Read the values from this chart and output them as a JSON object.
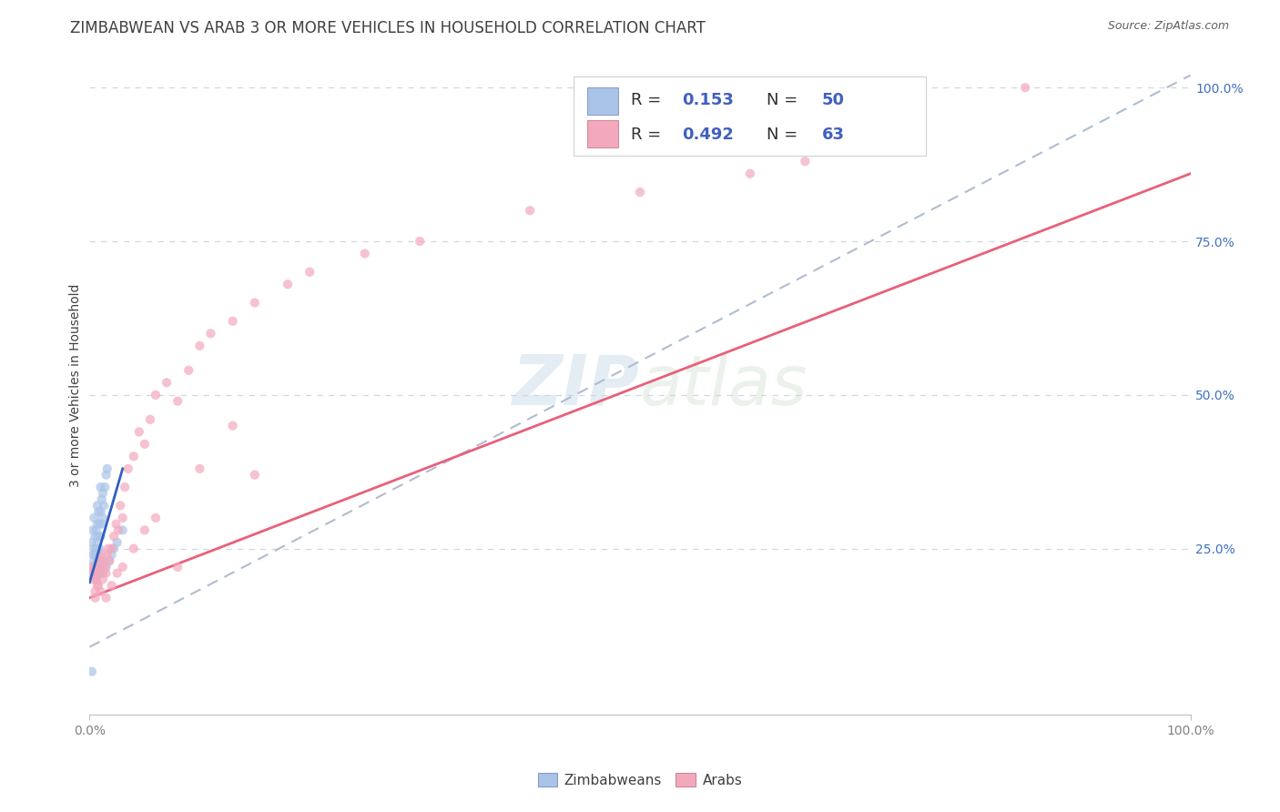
{
  "title": "ZIMBABWEAN VS ARAB 3 OR MORE VEHICLES IN HOUSEHOLD CORRELATION CHART",
  "source": "Source: ZipAtlas.com",
  "ylabel": "3 or more Vehicles in Household",
  "xlim": [
    0,
    1.0
  ],
  "ylim": [
    -0.02,
    1.05
  ],
  "y_ticks": [
    0.25,
    0.5,
    0.75,
    1.0
  ],
  "y_tick_labels": [
    "25.0%",
    "50.0%",
    "75.0%",
    "100.0%"
  ],
  "x_ticks": [
    0.0,
    1.0
  ],
  "x_tick_labels": [
    "0.0%",
    "100.0%"
  ],
  "watermark": "ZIPatlas",
  "zimbabwean_color": "#aac4e8",
  "arab_color": "#f4a8bc",
  "zimbabwean_line_color": "#3060c0",
  "arab_line_color": "#e8607a",
  "trend_dash_color": "#b0bcd0",
  "background_color": "#ffffff",
  "grid_color": "#d0d8e0",
  "legend_box_color_zim": "#aac4e8",
  "legend_box_color_arab": "#f4a8bc",
  "legend_text_color": "#404080",
  "title_color": "#404040",
  "source_color": "#606060",
  "ylabel_color": "#404040",
  "tick_color_x": "#808080",
  "tick_color_y": "#4070c0",
  "title_fontsize": 12,
  "source_fontsize": 9,
  "label_fontsize": 10,
  "tick_fontsize": 10,
  "legend_fontsize": 13,
  "watermark_fontsize": 55,
  "point_size": 55,
  "point_alpha": 0.7,
  "zim_x": [
    0.002,
    0.003,
    0.003,
    0.004,
    0.004,
    0.005,
    0.005,
    0.006,
    0.006,
    0.006,
    0.007,
    0.007,
    0.007,
    0.007,
    0.008,
    0.008,
    0.008,
    0.009,
    0.009,
    0.01,
    0.01,
    0.01,
    0.011,
    0.011,
    0.012,
    0.012,
    0.013,
    0.014,
    0.015,
    0.016,
    0.002,
    0.003,
    0.004,
    0.005,
    0.005,
    0.006,
    0.007,
    0.008,
    0.008,
    0.009,
    0.01,
    0.011,
    0.012,
    0.015,
    0.018,
    0.02,
    0.022,
    0.025,
    0.03,
    0.002
  ],
  "zim_y": [
    0.26,
    0.24,
    0.28,
    0.25,
    0.3,
    0.24,
    0.27,
    0.22,
    0.25,
    0.28,
    0.23,
    0.26,
    0.29,
    0.32,
    0.24,
    0.27,
    0.31,
    0.25,
    0.29,
    0.27,
    0.31,
    0.35,
    0.29,
    0.33,
    0.3,
    0.34,
    0.32,
    0.35,
    0.37,
    0.38,
    0.22,
    0.21,
    0.23,
    0.21,
    0.24,
    0.2,
    0.22,
    0.21,
    0.23,
    0.22,
    0.23,
    0.22,
    0.21,
    0.22,
    0.23,
    0.24,
    0.25,
    0.26,
    0.28,
    0.05
  ],
  "arab_x": [
    0.002,
    0.003,
    0.004,
    0.005,
    0.005,
    0.006,
    0.007,
    0.008,
    0.009,
    0.01,
    0.011,
    0.012,
    0.013,
    0.014,
    0.015,
    0.016,
    0.017,
    0.018,
    0.02,
    0.022,
    0.024,
    0.026,
    0.028,
    0.03,
    0.032,
    0.035,
    0.04,
    0.045,
    0.05,
    0.055,
    0.06,
    0.07,
    0.08,
    0.09,
    0.1,
    0.11,
    0.13,
    0.15,
    0.18,
    0.2,
    0.25,
    0.3,
    0.4,
    0.5,
    0.6,
    0.65,
    0.7,
    0.85,
    0.005,
    0.008,
    0.01,
    0.012,
    0.015,
    0.02,
    0.025,
    0.03,
    0.04,
    0.05,
    0.06,
    0.08,
    0.1,
    0.13,
    0.15
  ],
  "arab_y": [
    0.22,
    0.2,
    0.21,
    0.18,
    0.22,
    0.2,
    0.19,
    0.21,
    0.23,
    0.22,
    0.24,
    0.21,
    0.23,
    0.22,
    0.21,
    0.24,
    0.25,
    0.23,
    0.25,
    0.27,
    0.29,
    0.28,
    0.32,
    0.3,
    0.35,
    0.38,
    0.4,
    0.44,
    0.42,
    0.46,
    0.5,
    0.52,
    0.49,
    0.54,
    0.58,
    0.6,
    0.62,
    0.65,
    0.68,
    0.7,
    0.73,
    0.75,
    0.8,
    0.83,
    0.86,
    0.88,
    0.9,
    1.0,
    0.17,
    0.19,
    0.18,
    0.2,
    0.17,
    0.19,
    0.21,
    0.22,
    0.25,
    0.28,
    0.3,
    0.22,
    0.38,
    0.45,
    0.37
  ],
  "zim_line_x_start": 0.0,
  "zim_line_x_end": 0.03,
  "zim_line_y_start": 0.195,
  "zim_line_y_end": 0.38,
  "arab_line_x_start": 0.0,
  "arab_line_x_end": 1.0,
  "arab_line_y_start": 0.17,
  "arab_line_y_end": 0.86,
  "dash_line_x_start": 0.0,
  "dash_line_x_end": 1.0,
  "dash_line_y_start": 0.09,
  "dash_line_y_end": 1.02
}
